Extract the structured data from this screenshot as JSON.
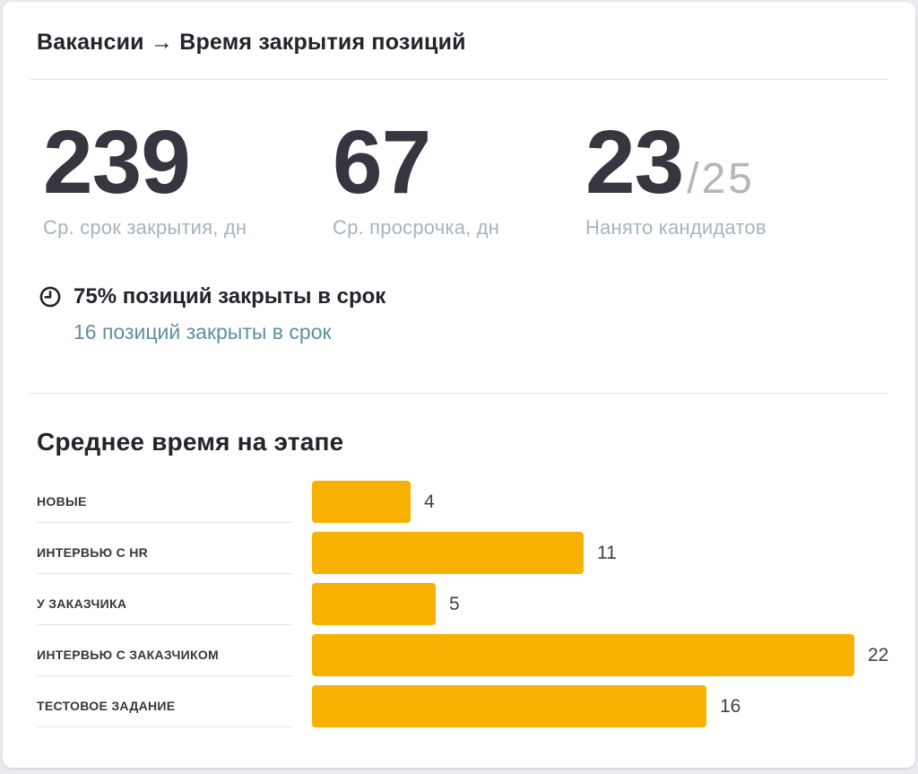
{
  "header": {
    "title": "Вакансии → Время закрытия позиций"
  },
  "stats": [
    {
      "value": "239",
      "label": "Ср. срок закрытия, дн"
    },
    {
      "value": "67",
      "label": "Ср. просрочка, дн"
    },
    {
      "value": "23",
      "total": "/25",
      "label": "Нанято кандидатов"
    }
  ],
  "ontime": {
    "icon": "clock-icon",
    "headline": "75% позиций закрыты в срок",
    "link_text": "16 позиций закрыты в срок"
  },
  "chart_data": {
    "type": "bar",
    "orientation": "horizontal",
    "title": "Среднее время на этапе",
    "categories": [
      "НОВЫЕ",
      "ИНТЕРВЬЮ С HR",
      "У ЗАКАЗЧИКА",
      "ИНТЕРВЬЮ С ЗАКАЗЧИКОМ",
      "ТЕСТОВОЕ ЗАДАНИЕ"
    ],
    "values": [
      4,
      11,
      5,
      22,
      16
    ],
    "xlim": [
      0,
      22
    ],
    "value_labels": true,
    "grid": false,
    "legend": false,
    "bar_color": "#f8b100"
  },
  "colors": {
    "accent": "#f8b100",
    "link": "#5e8fa0",
    "text-dark": "#23242c",
    "stat-number": "#35363f",
    "muted-label": "#a7b4bc",
    "total-gray": "#b3b6bb",
    "divider": "#e4e6e9",
    "page-bg": "#e9ebee",
    "card-bg": "#ffffff"
  }
}
